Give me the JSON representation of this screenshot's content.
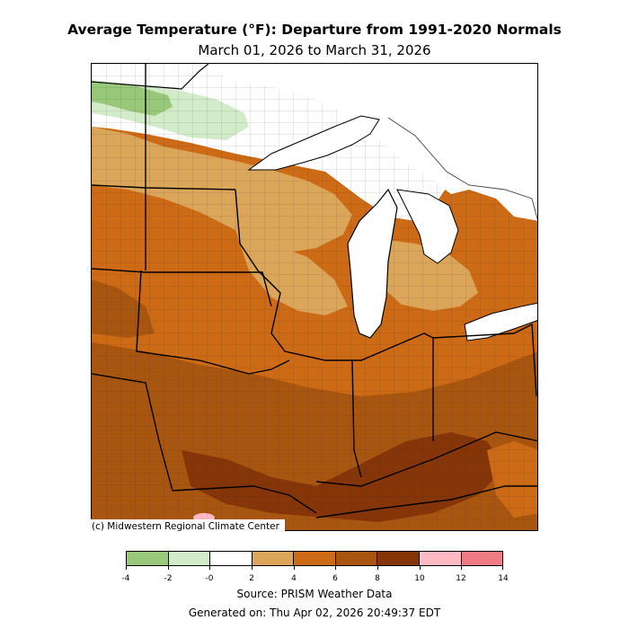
{
  "title": "Average Temperature (°F): Departure from 1991-2020 Normals",
  "subtitle": "March 01, 2026 to March 31, 2026",
  "credit": "(c) Midwestern Regional Climate Center",
  "source": "Source: PRISM Weather Data",
  "generated": "Generated on: Thu Apr 02, 2026 20:49:37 EDT",
  "legend": {
    "bins": [
      {
        "from": -4,
        "to": -2,
        "color": "#98c879"
      },
      {
        "from": -2,
        "to": 0,
        "color": "#d2ebc8"
      },
      {
        "from": 0,
        "to": 2,
        "color": "#ffffff"
      },
      {
        "from": 2,
        "to": 4,
        "color": "#dca65a"
      },
      {
        "from": 4,
        "to": 6,
        "color": "#cd6a15"
      },
      {
        "from": 6,
        "to": 8,
        "color": "#a85510"
      },
      {
        "from": 8,
        "to": 10,
        "color": "#863508"
      },
      {
        "from": 10,
        "to": 12,
        "color": "#ffb9c3"
      },
      {
        "from": 12,
        "to": 14,
        "color": "#ef7c84"
      }
    ],
    "tick_labels": [
      "-4",
      "-2",
      "-0",
      "2",
      "4",
      "6",
      "8",
      "10",
      "12",
      "14"
    ]
  }
}
